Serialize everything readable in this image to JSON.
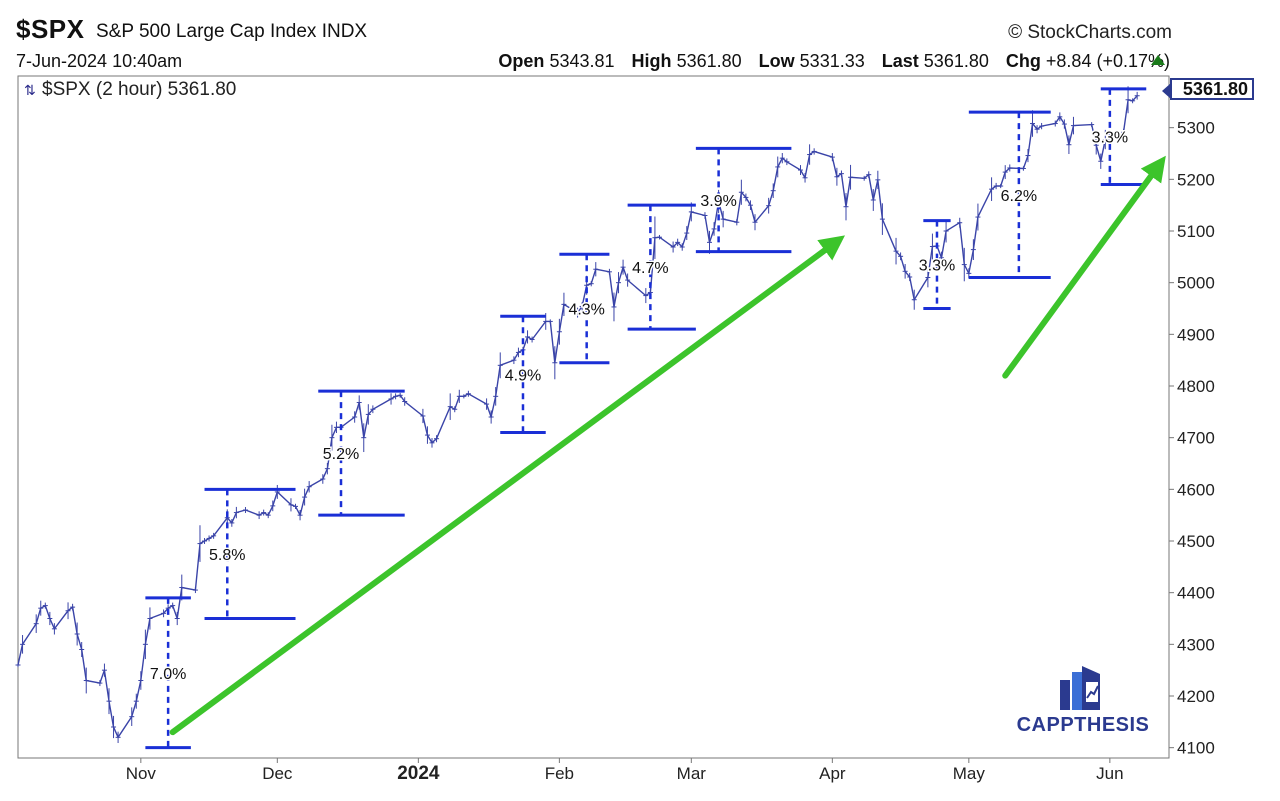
{
  "header": {
    "symbol": "$SPX",
    "index_name": "S&P 500 Large Cap Index",
    "exchange": "INDX",
    "brand": "StockCharts.com",
    "brand_symbol": "©",
    "date": "7-Jun-2024 10:40am",
    "open_label": "Open",
    "open_value": "5343.81",
    "high_label": "High",
    "high_value": "5361.80",
    "low_label": "Low",
    "low_value": "5331.33",
    "last_label": "Last",
    "last_value": "5361.80",
    "chg_label": "Chg",
    "chg_value": "+8.84 (+0.17%)"
  },
  "legend": {
    "text": "$SPX (2 hour) 5361.80",
    "icon": "candlestick-icon"
  },
  "last_price_label": "5361.80",
  "logo": {
    "text": "CAPPTHESIS",
    "icon": "bar-chart-logo-icon"
  },
  "colors": {
    "price": "#3a44a8",
    "bracket": "#1a2fd6",
    "arrow": "#3cc42b",
    "axis_text": "#222222"
  },
  "chart_data": {
    "type": "line",
    "title": "$SPX (2 hour) 5361.80",
    "xlabel": "",
    "ylabel": "",
    "ylim": [
      4080,
      5400
    ],
    "y_scale": "linear",
    "y_ticks": [
      4100,
      4200,
      4300,
      4400,
      4500,
      4600,
      4700,
      4800,
      4900,
      5000,
      5100,
      5200,
      5300
    ],
    "x_range": [
      "2023-10-05",
      "2024-06-14"
    ],
    "x_ticks": [
      {
        "date": "2023-11-01",
        "label": "Nov",
        "bold": false
      },
      {
        "date": "2023-12-01",
        "label": "Dec",
        "bold": false
      },
      {
        "date": "2024-01-01",
        "label": "2024",
        "bold": true
      },
      {
        "date": "2024-02-01",
        "label": "Feb",
        "bold": false
      },
      {
        "date": "2024-03-01",
        "label": "Mar",
        "bold": false
      },
      {
        "date": "2024-04-01",
        "label": "Apr",
        "bold": false
      },
      {
        "date": "2024-05-01",
        "label": "May",
        "bold": false
      },
      {
        "date": "2024-06-01",
        "label": "Jun",
        "bold": false
      }
    ],
    "grid": false,
    "series": [
      {
        "values": [
          [
            "2023-10-05",
            4260
          ],
          [
            "2023-10-06",
            4300
          ],
          [
            "2023-10-09",
            4340
          ],
          [
            "2023-10-10",
            4370
          ],
          [
            "2023-10-11",
            4375
          ],
          [
            "2023-10-12",
            4350
          ],
          [
            "2023-10-13",
            4330
          ],
          [
            "2023-10-16",
            4365
          ],
          [
            "2023-10-17",
            4372
          ],
          [
            "2023-10-18",
            4320
          ],
          [
            "2023-10-19",
            4290
          ],
          [
            "2023-10-20",
            4230
          ],
          [
            "2023-10-23",
            4225
          ],
          [
            "2023-10-24",
            4250
          ],
          [
            "2023-10-25",
            4190
          ],
          [
            "2023-10-26",
            4140
          ],
          [
            "2023-10-27",
            4120
          ],
          [
            "2023-10-30",
            4160
          ],
          [
            "2023-10-31",
            4190
          ],
          [
            "2023-11-01",
            4230
          ],
          [
            "2023-11-02",
            4300
          ],
          [
            "2023-11-03",
            4350
          ],
          [
            "2023-11-06",
            4360
          ],
          [
            "2023-11-07",
            4370
          ],
          [
            "2023-11-08",
            4375
          ],
          [
            "2023-11-09",
            4350
          ],
          [
            "2023-11-10",
            4410
          ],
          [
            "2023-11-13",
            4405
          ],
          [
            "2023-11-14",
            4495
          ],
          [
            "2023-11-15",
            4500
          ],
          [
            "2023-11-16",
            4505
          ],
          [
            "2023-11-17",
            4510
          ],
          [
            "2023-11-20",
            4545
          ],
          [
            "2023-11-21",
            4535
          ],
          [
            "2023-11-22",
            4555
          ],
          [
            "2023-11-24",
            4560
          ],
          [
            "2023-11-27",
            4550
          ],
          [
            "2023-11-28",
            4555
          ],
          [
            "2023-11-29",
            4550
          ],
          [
            "2023-11-30",
            4568
          ],
          [
            "2023-12-01",
            4595
          ],
          [
            "2023-12-04",
            4570
          ],
          [
            "2023-12-05",
            4567
          ],
          [
            "2023-12-06",
            4550
          ],
          [
            "2023-12-07",
            4585
          ],
          [
            "2023-12-08",
            4605
          ],
          [
            "2023-12-11",
            4620
          ],
          [
            "2023-12-12",
            4640
          ],
          [
            "2023-12-13",
            4700
          ],
          [
            "2023-12-14",
            4720
          ],
          [
            "2023-12-15",
            4720
          ],
          [
            "2023-12-18",
            4740
          ],
          [
            "2023-12-19",
            4768
          ],
          [
            "2023-12-20",
            4700
          ],
          [
            "2023-12-21",
            4745
          ],
          [
            "2023-12-22",
            4755
          ],
          [
            "2023-12-26",
            4775
          ],
          [
            "2023-12-27",
            4780
          ],
          [
            "2023-12-28",
            4782
          ],
          [
            "2023-12-29",
            4770
          ],
          [
            "2024-01-02",
            4742
          ],
          [
            "2024-01-03",
            4705
          ],
          [
            "2024-01-04",
            4690
          ],
          [
            "2024-01-05",
            4698
          ],
          [
            "2024-01-08",
            4760
          ],
          [
            "2024-01-09",
            4755
          ],
          [
            "2024-01-10",
            4780
          ],
          [
            "2024-01-11",
            4780
          ],
          [
            "2024-01-12",
            4785
          ],
          [
            "2024-01-16",
            4765
          ],
          [
            "2024-01-17",
            4740
          ],
          [
            "2024-01-18",
            4780
          ],
          [
            "2024-01-19",
            4840
          ],
          [
            "2024-01-22",
            4850
          ],
          [
            "2024-01-23",
            4865
          ],
          [
            "2024-01-24",
            4870
          ],
          [
            "2024-01-25",
            4895
          ],
          [
            "2024-01-26",
            4890
          ],
          [
            "2024-01-29",
            4925
          ],
          [
            "2024-01-30",
            4925
          ],
          [
            "2024-01-31",
            4845
          ],
          [
            "2024-02-01",
            4905
          ],
          [
            "2024-02-02",
            4958
          ],
          [
            "2024-02-05",
            4942
          ],
          [
            "2024-02-06",
            4954
          ],
          [
            "2024-02-07",
            4995
          ],
          [
            "2024-02-08",
            4998
          ],
          [
            "2024-02-09",
            5026
          ],
          [
            "2024-02-12",
            5021
          ],
          [
            "2024-02-13",
            4953
          ],
          [
            "2024-02-14",
            5000
          ],
          [
            "2024-02-15",
            5030
          ],
          [
            "2024-02-16",
            5005
          ],
          [
            "2024-02-20",
            4975
          ],
          [
            "2024-02-21",
            4981
          ],
          [
            "2024-02-22",
            5087
          ],
          [
            "2024-02-23",
            5088
          ],
          [
            "2024-02-26",
            5069
          ],
          [
            "2024-02-27",
            5078
          ],
          [
            "2024-02-28",
            5069
          ],
          [
            "2024-02-29",
            5096
          ],
          [
            "2024-03-01",
            5137
          ],
          [
            "2024-03-04",
            5130
          ],
          [
            "2024-03-05",
            5078
          ],
          [
            "2024-03-06",
            5104
          ],
          [
            "2024-03-07",
            5157
          ],
          [
            "2024-03-08",
            5123
          ],
          [
            "2024-03-11",
            5117
          ],
          [
            "2024-03-12",
            5175
          ],
          [
            "2024-03-13",
            5165
          ],
          [
            "2024-03-14",
            5150
          ],
          [
            "2024-03-15",
            5117
          ],
          [
            "2024-03-18",
            5149
          ],
          [
            "2024-03-19",
            5178
          ],
          [
            "2024-03-20",
            5224
          ],
          [
            "2024-03-21",
            5241
          ],
          [
            "2024-03-22",
            5234
          ],
          [
            "2024-03-25",
            5218
          ],
          [
            "2024-03-26",
            5203
          ],
          [
            "2024-03-27",
            5248
          ],
          [
            "2024-03-28",
            5254
          ],
          [
            "2024-04-01",
            5243
          ],
          [
            "2024-04-02",
            5205
          ],
          [
            "2024-04-03",
            5211
          ],
          [
            "2024-04-04",
            5147
          ],
          [
            "2024-04-05",
            5204
          ],
          [
            "2024-04-08",
            5202
          ],
          [
            "2024-04-09",
            5209
          ],
          [
            "2024-04-10",
            5160
          ],
          [
            "2024-04-11",
            5199
          ],
          [
            "2024-04-12",
            5123
          ],
          [
            "2024-04-15",
            5061
          ],
          [
            "2024-04-16",
            5051
          ],
          [
            "2024-04-17",
            5022
          ],
          [
            "2024-04-18",
            5011
          ],
          [
            "2024-04-19",
            4967
          ],
          [
            "2024-04-22",
            5010
          ],
          [
            "2024-04-23",
            5070
          ],
          [
            "2024-04-24",
            5071
          ],
          [
            "2024-04-25",
            5048
          ],
          [
            "2024-04-26",
            5100
          ],
          [
            "2024-04-29",
            5116
          ],
          [
            "2024-04-30",
            5035
          ],
          [
            "2024-05-01",
            5018
          ],
          [
            "2024-05-02",
            5064
          ],
          [
            "2024-05-03",
            5127
          ],
          [
            "2024-05-06",
            5181
          ],
          [
            "2024-05-07",
            5187
          ],
          [
            "2024-05-08",
            5187
          ],
          [
            "2024-05-09",
            5214
          ],
          [
            "2024-05-10",
            5222
          ],
          [
            "2024-05-13",
            5221
          ],
          [
            "2024-05-14",
            5246
          ],
          [
            "2024-05-15",
            5308
          ],
          [
            "2024-05-16",
            5297
          ],
          [
            "2024-05-17",
            5303
          ],
          [
            "2024-05-20",
            5308
          ],
          [
            "2024-05-21",
            5321
          ],
          [
            "2024-05-22",
            5307
          ],
          [
            "2024-05-23",
            5267
          ],
          [
            "2024-05-24",
            5304
          ],
          [
            "2024-05-28",
            5306
          ],
          [
            "2024-05-29",
            5266
          ],
          [
            "2024-05-30",
            5235
          ],
          [
            "2024-05-31",
            5277
          ],
          [
            "2024-06-03",
            5283
          ],
          [
            "2024-06-04",
            5291
          ],
          [
            "2024-06-05",
            5354
          ],
          [
            "2024-06-06",
            5352
          ],
          [
            "2024-06-07",
            5361.8
          ]
        ]
      }
    ],
    "annotations": [
      {
        "label": "7.0%",
        "date": "2023-11-07",
        "low": 4100,
        "high": 4390,
        "left": "2023-11-02",
        "right": "2023-11-12"
      },
      {
        "label": "5.8%",
        "date": "2023-11-20",
        "low": 4350,
        "high": 4600,
        "left": "2023-11-15",
        "right": "2023-12-05"
      },
      {
        "label": "5.2%",
        "date": "2023-12-15",
        "low": 4550,
        "high": 4790,
        "left": "2023-12-10",
        "right": "2023-12-29"
      },
      {
        "label": "4.9%",
        "date": "2024-01-24",
        "low": 4710,
        "high": 4935,
        "left": "2024-01-19",
        "right": "2024-01-29"
      },
      {
        "label": "4.3%",
        "date": "2024-02-07",
        "low": 4845,
        "high": 5055,
        "left": "2024-02-01",
        "right": "2024-02-12"
      },
      {
        "label": "4.7%",
        "date": "2024-02-21",
        "low": 4910,
        "high": 5150,
        "left": "2024-02-16",
        "right": "2024-03-02"
      },
      {
        "label": "3.9%",
        "date": "2024-03-07",
        "low": 5060,
        "high": 5260,
        "left": "2024-03-02",
        "right": "2024-03-23"
      },
      {
        "label": "3.3%",
        "date": "2024-04-24",
        "low": 4950,
        "high": 5120,
        "left": "2024-04-21",
        "right": "2024-04-27"
      },
      {
        "label": "6.2%",
        "date": "2024-05-12",
        "low": 5010,
        "high": 5330,
        "left": "2024-05-01",
        "right": "2024-05-19"
      },
      {
        "label": "3.3%",
        "date": "2024-06-01",
        "low": 5190,
        "high": 5375,
        "left": "2024-05-30",
        "right": "2024-06-09"
      }
    ],
    "trend_arrows": [
      {
        "from": [
          "2023-11-08",
          4130
        ],
        "to": [
          "2024-04-02",
          5080
        ]
      },
      {
        "from": [
          "2024-05-09",
          4820
        ],
        "to": [
          "2024-06-12",
          5230
        ]
      }
    ]
  }
}
